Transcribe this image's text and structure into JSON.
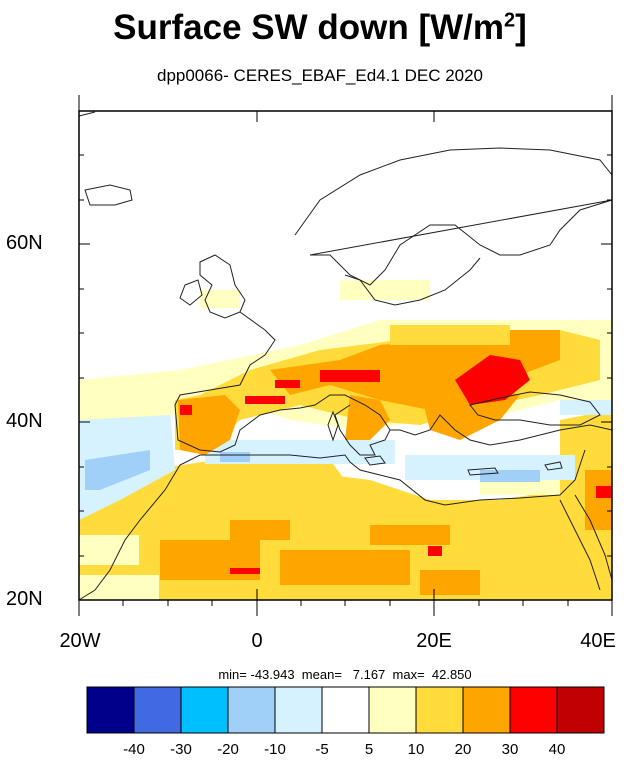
{
  "title": {
    "main": "Surface SW down [W/m",
    "sup": "2",
    "close": "]"
  },
  "subtitle": "dpp0066- CERES_EBAF_Ed4.1  DEC 2020",
  "map": {
    "lat_ticks": [
      {
        "label": "60N",
        "value": 60
      },
      {
        "label": "40N",
        "value": 40
      },
      {
        "label": "20N",
        "value": 20
      }
    ],
    "lon_ticks": [
      {
        "label": "20W",
        "value": -20
      },
      {
        "label": "0",
        "value": 0
      },
      {
        "label": "20E",
        "value": 20
      },
      {
        "label": "40E",
        "value": 40
      }
    ],
    "lat_range": [
      20,
      75
    ],
    "lon_range": [
      -20,
      40
    ]
  },
  "stats_text": "min= -43.943  mean=   7.167  max=  42.850",
  "colorbar": {
    "colors": [
      "#00008b",
      "#4169e1",
      "#00bfff",
      "#a0cff8",
      "#d6f2ff",
      "#ffffff",
      "#ffffc0",
      "#ffdc3c",
      "#ffa500",
      "#ff0000",
      "#c00000"
    ],
    "labels": [
      "-40",
      "-30",
      "-20",
      "-10",
      "-5",
      "5",
      "10",
      "20",
      "30",
      "40"
    ]
  }
}
